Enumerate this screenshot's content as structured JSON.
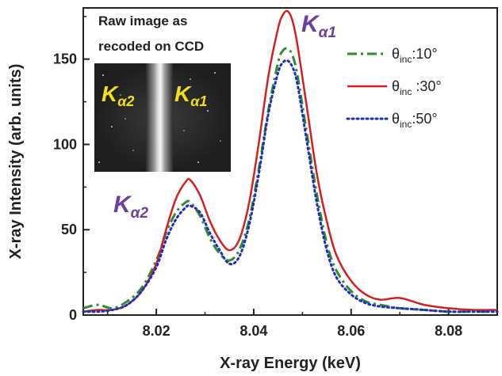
{
  "chart_data": {
    "type": "line",
    "xlabel": "X-ray Energy (keV)",
    "ylabel": "X-ray Intensity (arb. units)",
    "xlim": [
      8.005,
      8.09
    ],
    "ylim": [
      0,
      180
    ],
    "x_ticks": [
      "8.02",
      "8.04",
      "8.06",
      "8.08"
    ],
    "x_tick_values": [
      8.02,
      8.04,
      8.06,
      8.08
    ],
    "y_ticks": [
      "0",
      "50",
      "100",
      "150"
    ],
    "y_tick_values": [
      0,
      50,
      100,
      150
    ],
    "grid": false,
    "legend_position": "top-right",
    "annotations": {
      "peak_ka1": "K",
      "peak_ka1_sub": "α1",
      "peak_ka2": "K",
      "peak_ka2_sub": "α2"
    },
    "inset": {
      "title_line1": "Raw image as",
      "title_line2": "recoded on CCD",
      "label_left": "K",
      "label_left_sub": "α2",
      "label_right": "K",
      "label_right_sub": "α1"
    },
    "series": [
      {
        "name": "θinc:10°",
        "legend_main": "θ",
        "legend_sub": "inc",
        "legend_tail": ":10°",
        "color": "#2e8b2e",
        "style": "dashdot",
        "x": [
          8.005,
          8.008,
          8.011,
          8.014,
          8.017,
          8.02,
          8.022,
          8.024,
          8.026,
          8.027,
          8.029,
          8.031,
          8.033,
          8.035,
          8.037,
          8.039,
          8.041,
          8.043,
          8.045,
          8.046,
          8.047,
          8.048,
          8.049,
          8.051,
          8.053,
          8.055,
          8.057,
          8.06,
          8.063,
          8.066,
          8.07,
          8.075,
          8.08,
          8.085,
          8.09
        ],
        "y": [
          4,
          6,
          4,
          8,
          16,
          32,
          48,
          60,
          66,
          66,
          58,
          45,
          36,
          32,
          38,
          55,
          85,
          120,
          148,
          155,
          156,
          152,
          140,
          105,
          70,
          42,
          26,
          14,
          8,
          6,
          4,
          3,
          2,
          2,
          2
        ]
      },
      {
        "name": "θinc:30°",
        "legend_main": "θ",
        "legend_sub": "inc",
        "legend_tail": " :30°",
        "color": "#d42020",
        "style": "solid",
        "x": [
          8.005,
          8.008,
          8.011,
          8.014,
          8.017,
          8.02,
          8.022,
          8.024,
          8.026,
          8.027,
          8.029,
          8.031,
          8.033,
          8.035,
          8.037,
          8.039,
          8.041,
          8.043,
          8.045,
          8.046,
          8.047,
          8.048,
          8.049,
          8.051,
          8.053,
          8.055,
          8.057,
          8.06,
          8.063,
          8.066,
          8.07,
          8.075,
          8.08,
          8.085,
          8.09
        ],
        "y": [
          2,
          3,
          3,
          6,
          14,
          30,
          50,
          68,
          78,
          79,
          70,
          55,
          44,
          38,
          44,
          65,
          100,
          140,
          168,
          176,
          178,
          172,
          158,
          120,
          82,
          55,
          35,
          20,
          12,
          9,
          10,
          6,
          4,
          3,
          3
        ]
      },
      {
        "name": "θinc:50°",
        "legend_main": "θ",
        "legend_sub": "inc",
        "legend_tail": ":50°",
        "color": "#1c2fb8",
        "style": "dotted",
        "x": [
          8.005,
          8.008,
          8.011,
          8.014,
          8.017,
          8.02,
          8.022,
          8.024,
          8.026,
          8.027,
          8.029,
          8.031,
          8.033,
          8.035,
          8.037,
          8.039,
          8.041,
          8.043,
          8.045,
          8.046,
          8.047,
          8.048,
          8.049,
          8.051,
          8.053,
          8.055,
          8.057,
          8.06,
          8.063,
          8.066,
          8.07,
          8.075,
          8.08,
          8.085,
          8.09
        ],
        "y": [
          2,
          2,
          3,
          6,
          14,
          28,
          44,
          56,
          63,
          64,
          60,
          48,
          38,
          30,
          34,
          52,
          82,
          118,
          142,
          148,
          149,
          145,
          135,
          100,
          65,
          38,
          22,
          12,
          7,
          5,
          4,
          3,
          2,
          2,
          2
        ]
      }
    ]
  }
}
